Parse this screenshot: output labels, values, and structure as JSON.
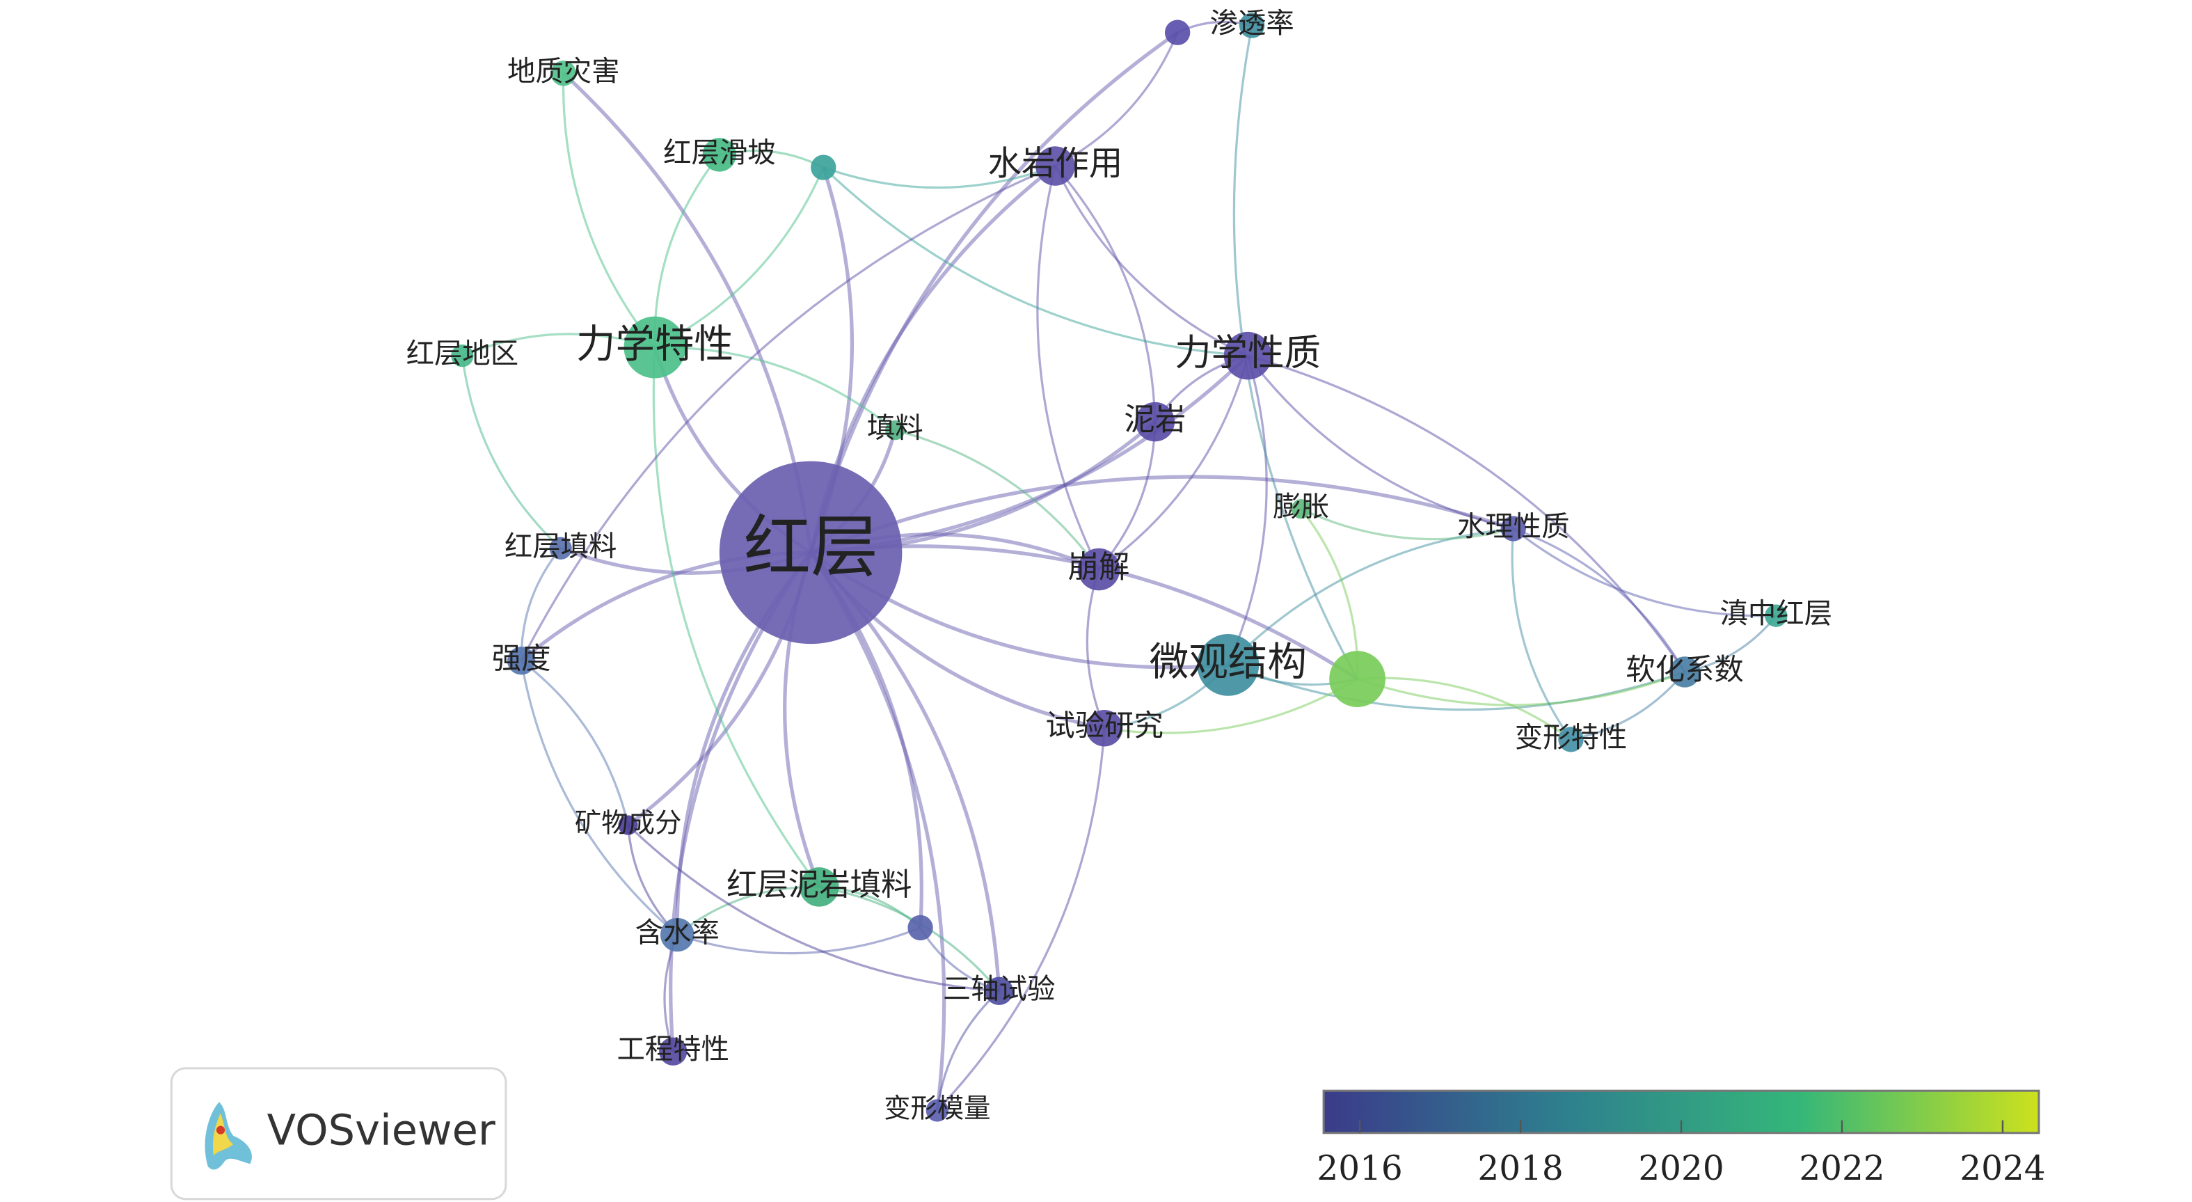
{
  "nodes": [
    {
      "label": "红层",
      "color": "#6a5fb0"
    },
    {
      "label": "力学特性",
      "color": "#4cc08a"
    },
    {
      "label": "力学性质",
      "color": "#5c4fa8"
    },
    {
      "label": "水岩作用",
      "color": "#5e52a8"
    },
    {
      "label": "微观结构",
      "color": "#3f8fa0"
    },
    {
      "color": "#78cc5a"
    },
    {
      "label": "泥岩",
      "color": "#5a4da6"
    },
    {
      "label": "崩解",
      "color": "#5b4ea6"
    },
    {
      "label": "试验研究",
      "color": "#5a4da5"
    },
    {
      "label": "水理性质",
      "color": "#5c5fae"
    },
    {
      "label": "软化系数",
      "color": "#4a7fa5"
    },
    {
      "label": "滇中红层",
      "color": "#40a895"
    },
    {
      "label": "变形特性",
      "color": "#4590a5"
    },
    {
      "label": "膨胀",
      "color": "#5fb87d"
    },
    {
      "label": "填料",
      "color": "#55b484"
    },
    {
      "label": "红层填料",
      "color": "#5a72ad"
    },
    {
      "label": "强度",
      "color": "#5675b0"
    },
    {
      "label": "矿物成分",
      "color": "#4b3f98"
    },
    {
      "label": "红层泥岩填料",
      "color": "#44b07f"
    },
    {
      "color": "#5964ab"
    },
    {
      "label": "含水率",
      "color": "#5578ae"
    },
    {
      "label": "三轴试验",
      "color": "#4f4ea0"
    },
    {
      "label": "工程特性",
      "color": "#564aa0"
    },
    {
      "label": "变形模量",
      "color": "#5c5fb0"
    },
    {
      "label": "地质灾害",
      "color": "#52c18a"
    },
    {
      "label": "红层滑坡",
      "color": "#48bb86"
    },
    {
      "color": "#3ca39a"
    },
    {
      "label": "红层地区",
      "color": "#49b88b"
    },
    {
      "label": "渗透率",
      "color": "#418fa0"
    },
    {
      "color": "#5a4faa"
    }
  ],
  "logo": "VOSviewer",
  "colorbar": {
    "lim": [
      2015.55,
      2024.45
    ],
    "ticks": [
      2016,
      2018,
      2020,
      2022,
      2024
    ],
    "colors": [
      "#3b3b8a",
      "#2e7f8e",
      "#35b779",
      "#cde11d"
    ]
  }
}
